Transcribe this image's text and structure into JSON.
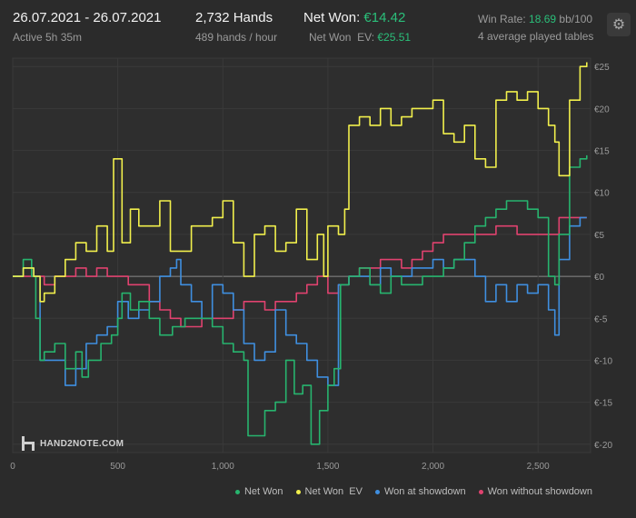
{
  "header": {
    "date_range": "26.07.2021 - 26.07.2021",
    "active": "Active 5h 35m",
    "hands": "2,732 Hands",
    "hands_per_hour": "489 hands / hour",
    "net_won_label": "Net Won:",
    "net_won_value": "€14.42",
    "net_won_ev_label": "Net Won  EV:",
    "net_won_ev_value": "€25.51",
    "win_rate_label": "Win Rate:",
    "win_rate_value": "18.69",
    "win_rate_unit": "bb/100",
    "tables": "4 average played tables",
    "settings_icon": "gear-icon"
  },
  "logo": {
    "text": "HAND2NOTE.COM"
  },
  "colors": {
    "net_won": "#27b46e",
    "net_won_ev": "#f1ef4c",
    "showdown": "#3f8fe0",
    "without_showdown": "#e0426f",
    "background": "#2b2b2b",
    "grid": "#3a3a3a"
  },
  "chart_data": {
    "type": "line",
    "xlim": [
      0,
      2750
    ],
    "ylim": [
      -21,
      26
    ],
    "x_ticks": [
      0,
      500,
      1000,
      1500,
      2000,
      2500
    ],
    "x_tick_labels": [
      "0",
      "500",
      "1,000",
      "1,500",
      "2,000",
      "2,500"
    ],
    "y_ticks": [
      25,
      20,
      15,
      10,
      5,
      0,
      -5,
      -10,
      -15,
      -20
    ],
    "y_tick_labels": [
      "€25",
      "€20",
      "€15",
      "€10",
      "€5",
      "€0",
      "€-5",
      "€-10",
      "€-15",
      "€-20"
    ],
    "legend_position": "bottom-right",
    "grid": true,
    "series": [
      {
        "name": "Net Won",
        "x": [
          0,
          50,
          90,
          110,
          130,
          150,
          200,
          250,
          300,
          330,
          360,
          420,
          470,
          500,
          520,
          560,
          600,
          650,
          700,
          760,
          820,
          860,
          900,
          950,
          1000,
          1050,
          1100,
          1120,
          1200,
          1250,
          1300,
          1340,
          1380,
          1420,
          1460,
          1500,
          1530,
          1560,
          1600,
          1650,
          1700,
          1750,
          1800,
          1850,
          1900,
          1950,
          2000,
          2050,
          2100,
          2150,
          2200,
          2250,
          2300,
          2350,
          2400,
          2450,
          2500,
          2550,
          2580,
          2600,
          2650,
          2700,
          2732
        ],
        "y": [
          0,
          2,
          0,
          -5,
          -10,
          -9,
          -8,
          -11,
          -9,
          -12,
          -10,
          -8,
          -7,
          -5,
          -2,
          -4,
          -3,
          -5,
          -7,
          -6,
          -5,
          -5,
          -5,
          -6,
          -8,
          -9,
          -10,
          -19,
          -16,
          -15,
          -10,
          -14,
          -13,
          -20,
          -16,
          -13,
          -11,
          -1,
          0,
          1,
          -1,
          -2,
          0,
          -1,
          -1,
          0,
          0,
          1,
          2,
          4,
          6,
          7,
          8,
          9,
          9,
          8,
          7,
          0,
          -1,
          5,
          13,
          14,
          14.42
        ]
      },
      {
        "name": "Net Won  EV",
        "x": [
          0,
          50,
          100,
          130,
          150,
          200,
          250,
          300,
          350,
          400,
          450,
          480,
          520,
          560,
          600,
          650,
          700,
          750,
          800,
          850,
          900,
          950,
          1000,
          1050,
          1100,
          1150,
          1200,
          1250,
          1300,
          1350,
          1400,
          1450,
          1480,
          1500,
          1550,
          1580,
          1600,
          1650,
          1700,
          1750,
          1800,
          1850,
          1900,
          1950,
          2000,
          2050,
          2100,
          2150,
          2200,
          2250,
          2300,
          2350,
          2400,
          2450,
          2500,
          2550,
          2580,
          2600,
          2650,
          2700,
          2732
        ],
        "y": [
          0,
          1,
          0,
          -3,
          -2,
          0,
          2,
          4,
          3,
          6,
          3,
          14,
          4,
          8,
          6,
          6,
          9,
          3,
          3,
          6,
          6,
          7,
          9,
          4,
          0,
          5,
          6,
          3,
          4,
          8,
          2,
          5,
          0,
          6,
          5,
          8,
          18,
          19,
          18,
          20,
          18,
          19,
          20,
          20,
          21,
          17,
          16,
          18,
          14,
          13,
          21,
          22,
          21,
          22,
          20,
          18,
          16,
          12,
          21,
          25,
          25.51
        ]
      },
      {
        "name": "Won at showdown",
        "x": [
          0,
          50,
          100,
          130,
          200,
          250,
          300,
          350,
          400,
          450,
          500,
          550,
          600,
          650,
          700,
          750,
          780,
          800,
          850,
          900,
          950,
          1000,
          1050,
          1100,
          1150,
          1200,
          1250,
          1300,
          1350,
          1400,
          1450,
          1500,
          1550,
          1600,
          1650,
          1700,
          1750,
          1800,
          1850,
          1900,
          1950,
          2000,
          2050,
          2100,
          2150,
          2200,
          2250,
          2300,
          2350,
          2400,
          2450,
          2500,
          2550,
          2580,
          2600,
          2650,
          2700,
          2732
        ],
        "y": [
          0,
          1,
          0,
          -10,
          -10,
          -13,
          -11,
          -8,
          -7,
          -6,
          -3,
          -5,
          -4,
          -3,
          0,
          1,
          2,
          -1,
          -3,
          -5,
          -1,
          -2,
          -4,
          -8,
          -10,
          -9,
          -4,
          -7,
          -8,
          -10,
          -12,
          -13,
          -1,
          0,
          0,
          -1,
          1,
          0,
          0,
          1,
          1,
          2,
          1,
          2,
          2,
          0,
          -3,
          -1,
          -3,
          -1,
          -2,
          -1,
          -4,
          -7,
          2,
          6,
          7,
          7
        ]
      },
      {
        "name": "Won without showdown",
        "x": [
          0,
          50,
          100,
          150,
          200,
          250,
          300,
          350,
          400,
          450,
          500,
          550,
          600,
          650,
          700,
          750,
          800,
          850,
          900,
          950,
          1000,
          1050,
          1100,
          1150,
          1200,
          1250,
          1300,
          1350,
          1400,
          1450,
          1500,
          1550,
          1600,
          1650,
          1700,
          1750,
          1800,
          1850,
          1900,
          1950,
          2000,
          2050,
          2100,
          2150,
          2200,
          2250,
          2300,
          2350,
          2400,
          2450,
          2500,
          2550,
          2600,
          2650,
          2700,
          2732
        ],
        "y": [
          0,
          0,
          0,
          -1,
          0,
          0,
          1,
          0,
          1,
          0,
          0,
          -1,
          -1,
          -3,
          -4,
          -5,
          -6,
          -6,
          -5,
          -5,
          -5,
          -4,
          -3,
          -3,
          -4,
          -3,
          -3,
          -2,
          -1,
          0,
          -2,
          -1,
          0,
          1,
          1,
          2,
          2,
          1,
          2,
          3,
          4,
          5,
          5,
          5,
          5,
          5,
          6,
          6,
          5,
          5,
          5,
          5,
          7,
          7,
          7,
          7
        ]
      }
    ]
  }
}
